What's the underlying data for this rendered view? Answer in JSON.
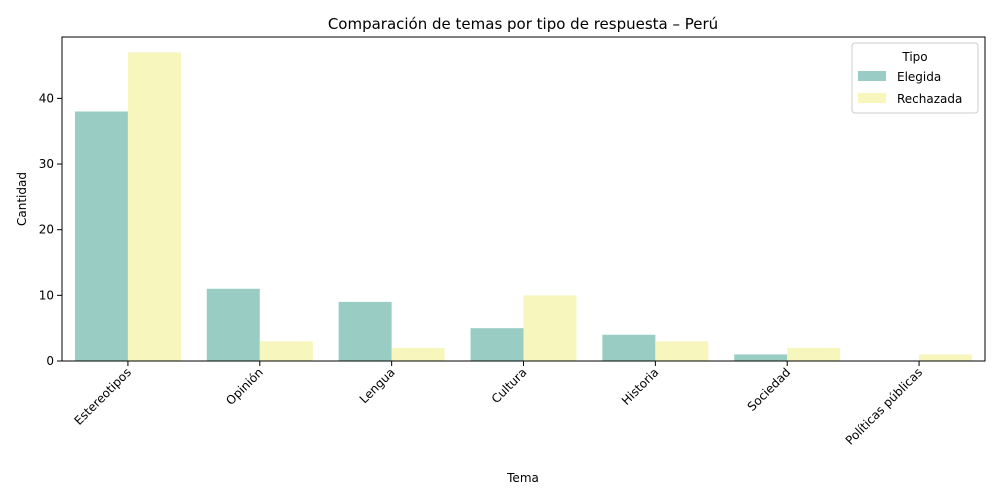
{
  "chart_data": {
    "type": "bar",
    "title": "Comparación de temas por tipo de respuesta – Perú",
    "xlabel": "Tema",
    "ylabel": "Cantidad",
    "categories": [
      "Estereotipos",
      "Opinión",
      "Lengua",
      "Cultura",
      "Historia",
      "Sociedad",
      "Políticas públicas"
    ],
    "series": [
      {
        "name": "Elegida",
        "color": "#99cdc3",
        "values": [
          38,
          11,
          9,
          5,
          4,
          1,
          0
        ]
      },
      {
        "name": "Rechazada",
        "color": "#f6f6bd",
        "values": [
          47,
          3,
          2,
          10,
          3,
          2,
          1
        ]
      }
    ],
    "ylim": [
      0,
      49.35
    ],
    "yticks": [
      0,
      10,
      20,
      30,
      40
    ],
    "legend": {
      "title": "Tipo",
      "position": "top-right"
    },
    "grid": false
  }
}
